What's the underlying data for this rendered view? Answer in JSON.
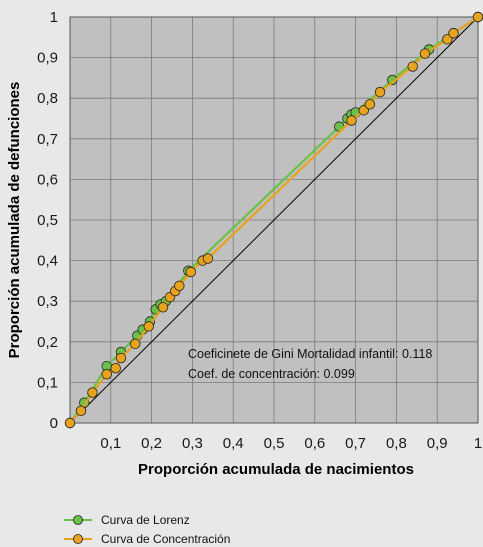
{
  "chart_data": {
    "type": "line",
    "xlabel": "Proporción acumulada de nacimientos",
    "ylabel": "Proporción acumulada de defunciones",
    "xlim": [
      0,
      1
    ],
    "ylim": [
      0,
      1
    ],
    "x_ticks": [
      "0,1",
      "0,2",
      "0,3",
      "0,4",
      "0,5",
      "0,6",
      "0,7",
      "0,8",
      "0,9",
      "1"
    ],
    "y_ticks": [
      "0",
      "0,1",
      "0,2",
      "0,3",
      "0,4",
      "0,5",
      "0,6",
      "0,7",
      "0,8",
      "0,9",
      "1"
    ],
    "grid": true,
    "annotations": [
      "Coeficinete de Gini Mortalidad infantil: 0.118",
      "Coef. de concentración: 0.099"
    ],
    "legend_position": "bottom-left",
    "series": [
      {
        "name": "Curva de Lorenz",
        "color": "#6cc04a",
        "points": [
          [
            0.0,
            0.0
          ],
          [
            0.035,
            0.05
          ],
          [
            0.09,
            0.14
          ],
          [
            0.125,
            0.175
          ],
          [
            0.165,
            0.215
          ],
          [
            0.178,
            0.23
          ],
          [
            0.196,
            0.25
          ],
          [
            0.21,
            0.28
          ],
          [
            0.222,
            0.292
          ],
          [
            0.235,
            0.3
          ],
          [
            0.29,
            0.375
          ],
          [
            0.66,
            0.73
          ],
          [
            0.68,
            0.75
          ],
          [
            0.69,
            0.76
          ],
          [
            0.7,
            0.765
          ],
          [
            0.79,
            0.845
          ],
          [
            0.88,
            0.92
          ],
          [
            0.94,
            0.96
          ],
          [
            1.0,
            1.0
          ]
        ]
      },
      {
        "name": "Curva de Concentración",
        "color": "#e8a31e",
        "points": [
          [
            0.0,
            0.0
          ],
          [
            0.027,
            0.03
          ],
          [
            0.055,
            0.075
          ],
          [
            0.09,
            0.12
          ],
          [
            0.112,
            0.135
          ],
          [
            0.125,
            0.16
          ],
          [
            0.16,
            0.195
          ],
          [
            0.193,
            0.238
          ],
          [
            0.228,
            0.285
          ],
          [
            0.245,
            0.31
          ],
          [
            0.258,
            0.325
          ],
          [
            0.268,
            0.338
          ],
          [
            0.296,
            0.372
          ],
          [
            0.325,
            0.4
          ],
          [
            0.338,
            0.405
          ],
          [
            0.69,
            0.745
          ],
          [
            0.72,
            0.77
          ],
          [
            0.735,
            0.785
          ],
          [
            0.76,
            0.815
          ],
          [
            0.84,
            0.878
          ],
          [
            0.87,
            0.91
          ],
          [
            0.925,
            0.945
          ],
          [
            0.94,
            0.96
          ],
          [
            1.0,
            1.0
          ]
        ]
      }
    ]
  }
}
